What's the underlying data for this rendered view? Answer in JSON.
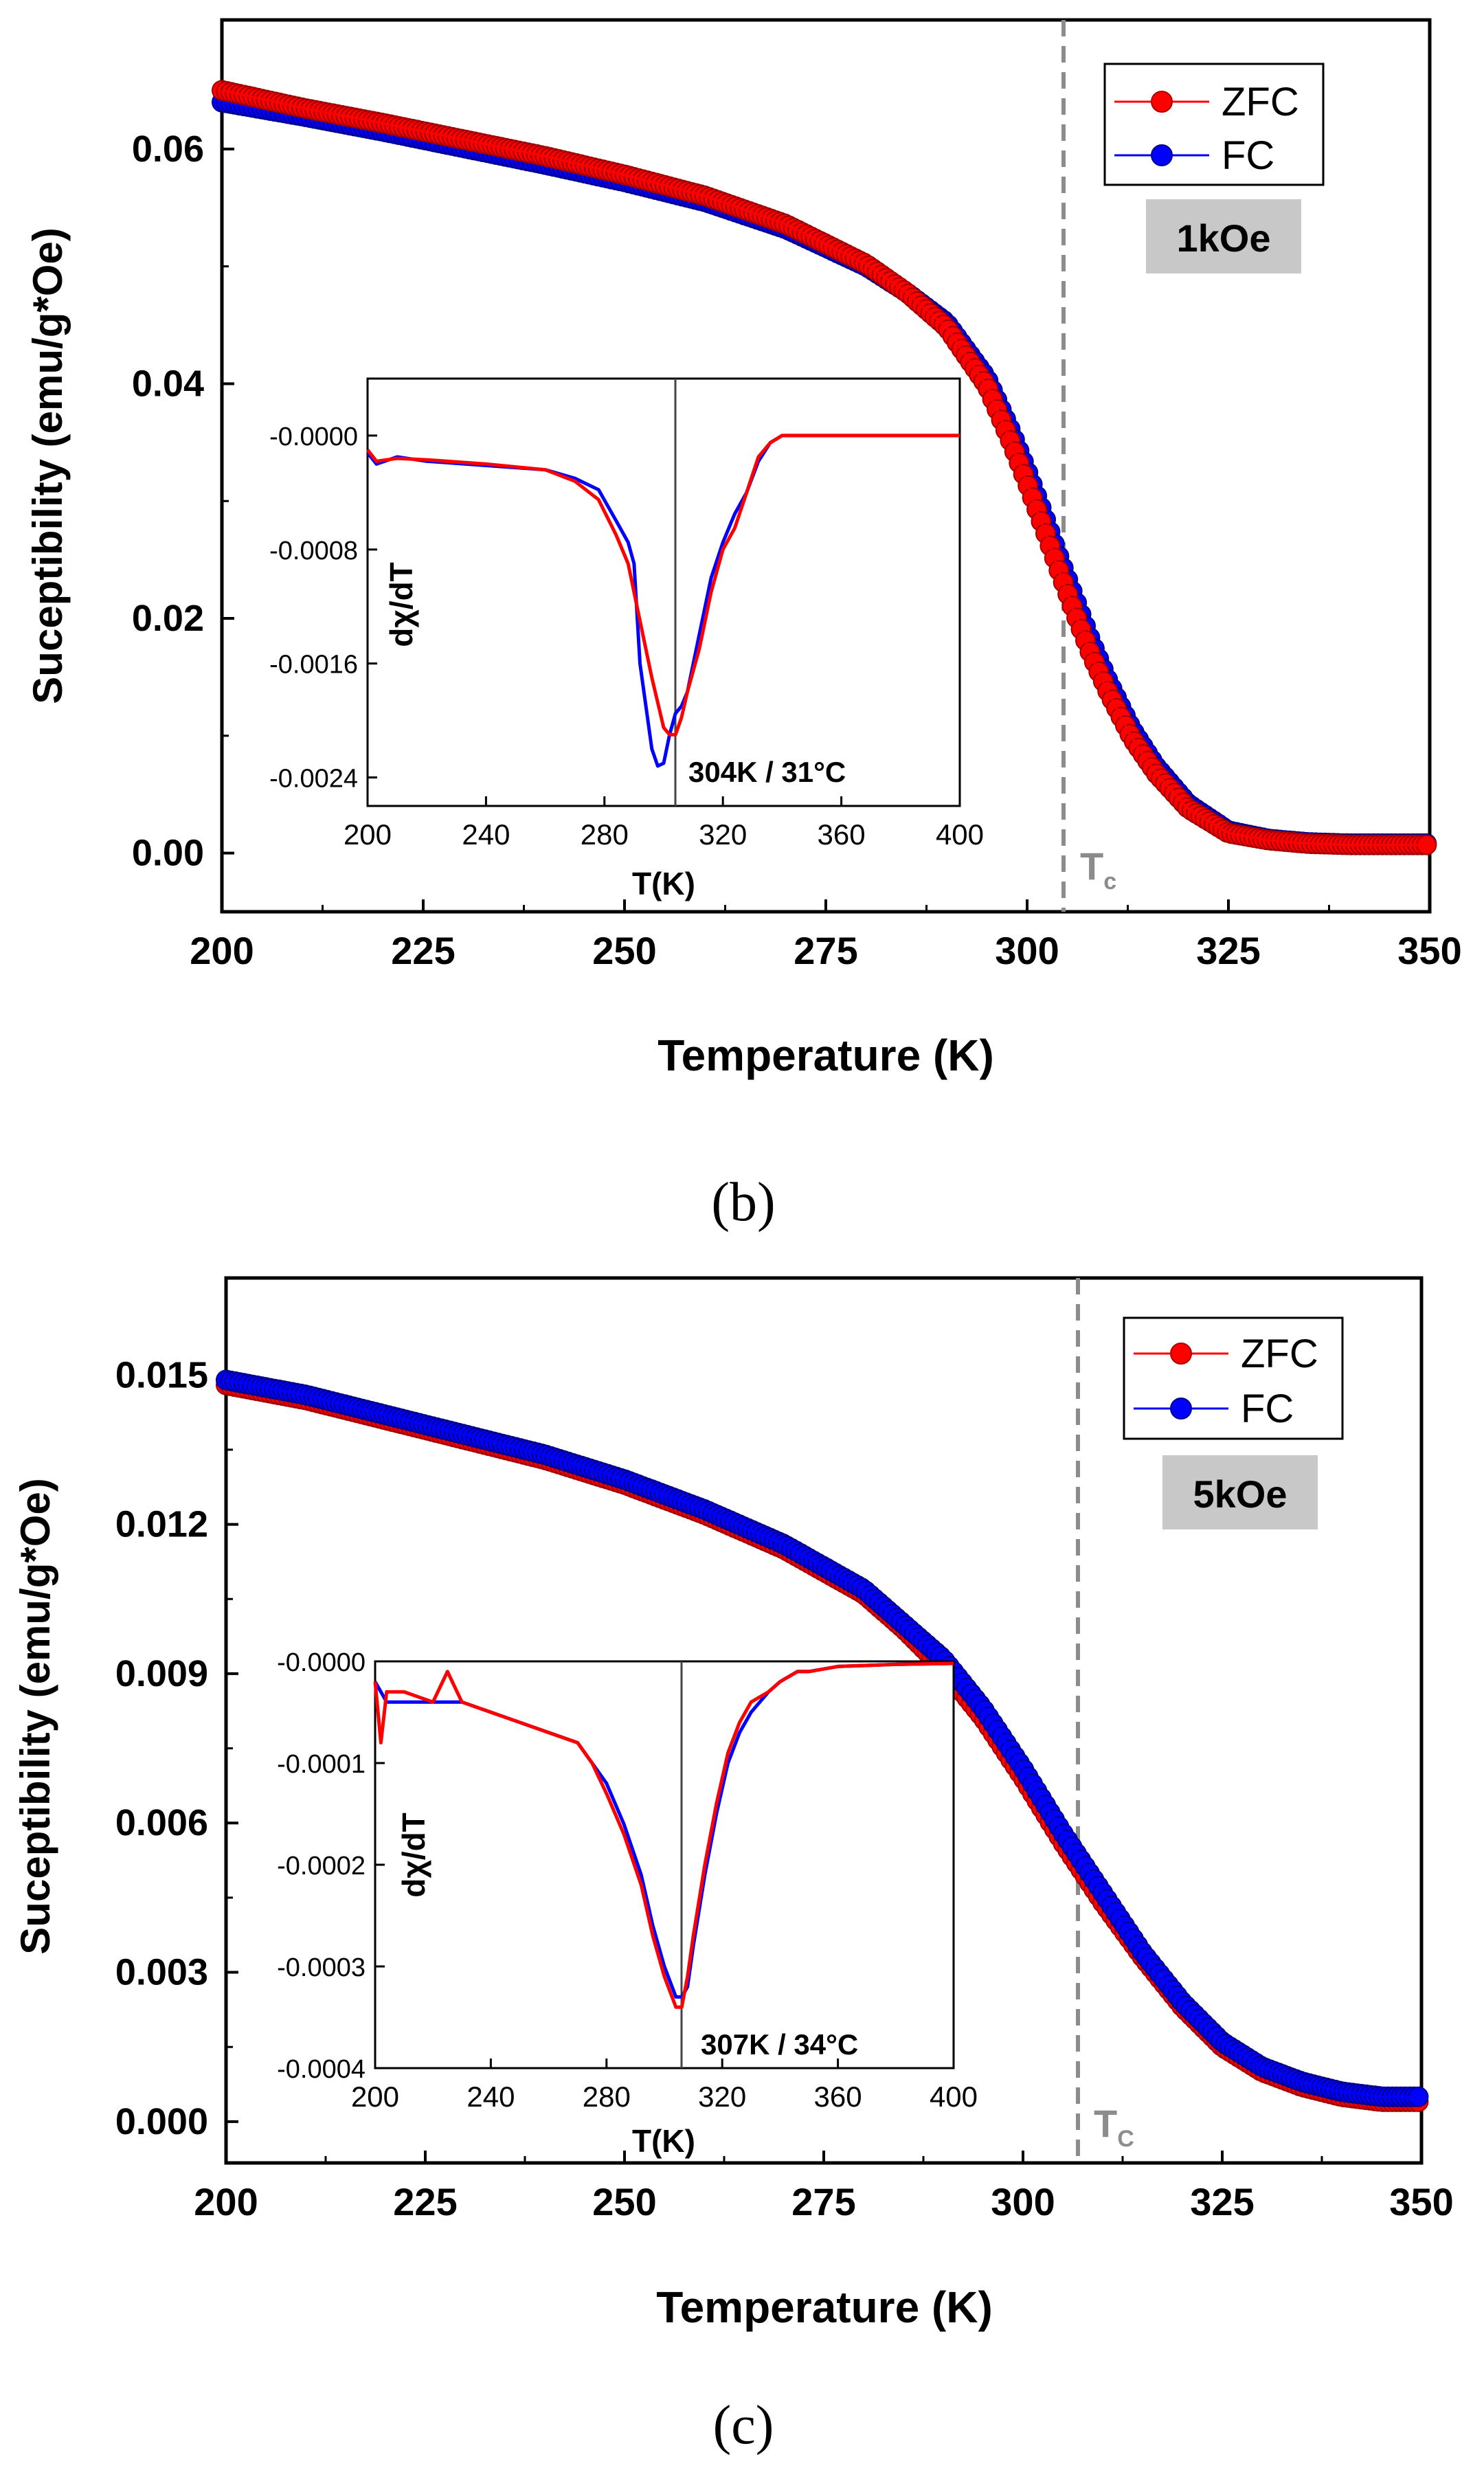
{
  "chart_data": [
    {
      "type": "scatter",
      "panel_label": "(b)",
      "xlabel": "Temperature (K)",
      "ylabel": "Suceptibility (emu/g*Oe)",
      "xlim": [
        200,
        350
      ],
      "ylim": [
        -0.005,
        0.071
      ],
      "xticks": [
        200,
        225,
        250,
        275,
        300,
        325,
        350
      ],
      "xtick_labels": [
        "200",
        "225",
        "250",
        "275",
        "300",
        "325",
        "350"
      ],
      "yticks": [
        0.0,
        0.02,
        0.04,
        0.06
      ],
      "ytick_labels": [
        "0.00",
        "0.02",
        "0.04",
        "0.06"
      ],
      "legend": [
        "ZFC",
        "FC"
      ],
      "legend_position": "top-right",
      "field_label": "1kOe",
      "tc_label": "T",
      "tc_subscript": "c",
      "tc_value": 304,
      "colors": {
        "ZFC": "#ff0000",
        "FC": "#0000ff",
        "tc_line": "#8c8c8c",
        "field_box": "#c8c8c8"
      },
      "series": [
        {
          "name": "ZFC",
          "x": [
            200,
            210,
            220,
            230,
            240,
            250,
            260,
            270,
            280,
            285,
            290,
            295,
            298,
            300,
            302,
            304,
            306,
            308,
            310,
            313,
            316,
            320,
            325,
            330,
            335,
            340,
            345,
            350
          ],
          "y": [
            0.065,
            0.0635,
            0.0622,
            0.0608,
            0.0594,
            0.0578,
            0.056,
            0.0536,
            0.0502,
            0.0478,
            0.0448,
            0.0398,
            0.035,
            0.0315,
            0.0278,
            0.024,
            0.0203,
            0.0168,
            0.0138,
            0.0098,
            0.0068,
            0.0038,
            0.0017,
            0.0011,
            0.0008,
            0.0007,
            0.0007,
            0.0007
          ]
        },
        {
          "name": "FC",
          "x": [
            200,
            210,
            220,
            230,
            240,
            250,
            260,
            270,
            280,
            285,
            290,
            295,
            298,
            300,
            302,
            304,
            306,
            308,
            310,
            313,
            316,
            320,
            325,
            330,
            335,
            340,
            345,
            350
          ],
          "y": [
            0.064,
            0.0628,
            0.0615,
            0.0601,
            0.0587,
            0.0572,
            0.0555,
            0.0532,
            0.05,
            0.0478,
            0.0452,
            0.0405,
            0.036,
            0.0326,
            0.029,
            0.0252,
            0.0216,
            0.018,
            0.0148,
            0.0106,
            0.0074,
            0.0042,
            0.0019,
            0.0012,
            0.0009,
            0.0008,
            0.0008,
            0.0008
          ]
        }
      ],
      "inset": {
        "xlabel": "T(K)",
        "ylabel": "dχ/dT",
        "xlim": [
          200,
          400
        ],
        "ylim": [
          -0.0026,
          0.0004
        ],
        "xticks": [
          200,
          240,
          280,
          320,
          360,
          400
        ],
        "xtick_labels": [
          "200",
          "240",
          "280",
          "320",
          "360",
          "400"
        ],
        "yticks": [
          0.0,
          -0.0008,
          -0.0016,
          -0.0024
        ],
        "ytick_labels": [
          "-0.0000",
          "-0.0008",
          "-0.0016",
          "-0.0024"
        ],
        "annotation": "304K / 31°C",
        "vline": 304,
        "series": [
          {
            "name": "ZFC",
            "x": [
              200,
              203,
              210,
              220,
              240,
              260,
              270,
              278,
              284,
              288,
              292,
              296,
              300,
              302,
              304,
              306,
              308,
              312,
              316,
              320,
              324,
              328,
              332,
              336,
              340,
              350,
              360,
              380,
              400
            ],
            "y": [
              -0.0001,
              -0.00018,
              -0.00016,
              -0.00017,
              -0.0002,
              -0.00024,
              -0.00032,
              -0.00045,
              -0.0007,
              -0.0009,
              -0.0013,
              -0.0017,
              -0.00205,
              -0.0021,
              -0.0021,
              -0.00198,
              -0.0018,
              -0.0015,
              -0.0011,
              -0.0008,
              -0.00065,
              -0.0004,
              -0.00015,
              -5e-05,
              0.0,
              0.0,
              0.0,
              0.0,
              0.0
            ]
          },
          {
            "name": "FC",
            "x": [
              200,
              203,
              210,
              220,
              240,
              260,
              270,
              278,
              284,
              288,
              290,
              292,
              296,
              298,
              300,
              302,
              304,
              306,
              308,
              312,
              316,
              320,
              324,
              328,
              332,
              336,
              340,
              350,
              360,
              380,
              400
            ],
            "y": [
              -0.00012,
              -0.0002,
              -0.00015,
              -0.00018,
              -0.00021,
              -0.00024,
              -0.0003,
              -0.00038,
              -0.0006,
              -0.00075,
              -0.0009,
              -0.0016,
              -0.0022,
              -0.00232,
              -0.0023,
              -0.0021,
              -0.00195,
              -0.0019,
              -0.0018,
              -0.0014,
              -0.001,
              -0.00075,
              -0.00055,
              -0.0004,
              -0.00018,
              -5e-05,
              0.0,
              0.0,
              0.0,
              0.0,
              0.0
            ]
          }
        ]
      }
    },
    {
      "type": "scatter",
      "panel_label": "(c)",
      "xlabel": "Temperature (K)",
      "ylabel": "Suceptibility (emu/g*Oe)",
      "xlim": [
        200,
        350
      ],
      "ylim": [
        -0.00083,
        0.01695
      ],
      "xticks": [
        200,
        225,
        250,
        275,
        300,
        325,
        350
      ],
      "xtick_labels": [
        "200",
        "225",
        "250",
        "275",
        "300",
        "325",
        "350"
      ],
      "yticks": [
        0.0,
        0.003,
        0.006,
        0.009,
        0.012,
        0.015
      ],
      "ytick_labels": [
        "0.000",
        "0.003",
        "0.006",
        "0.009",
        "0.012",
        "0.015"
      ],
      "legend": [
        "ZFC",
        "FC"
      ],
      "legend_position": "top-right",
      "field_label": "5kOe",
      "tc_label": "T",
      "tc_subscript": "C",
      "tc_value": 307,
      "colors": {
        "ZFC": "#ff0000",
        "FC": "#0000ff",
        "tc_line": "#8c8c8c",
        "field_box": "#c8c8c8"
      },
      "series": [
        {
          "name": "ZFC",
          "x": [
            200,
            210,
            220,
            230,
            240,
            250,
            260,
            270,
            280,
            285,
            290,
            295,
            300,
            305,
            310,
            315,
            320,
            325,
            330,
            335,
            340,
            345,
            350
          ],
          "y": [
            0.0148,
            0.0145,
            0.0141,
            0.0137,
            0.0133,
            0.0128,
            0.0122,
            0.0115,
            0.0106,
            0.0099,
            0.0091,
            0.0081,
            0.0069,
            0.0056,
            0.0044,
            0.0033,
            0.0023,
            0.0015,
            0.001,
            0.0007,
            0.0005,
            0.0004,
            0.0004
          ]
        },
        {
          "name": "FC",
          "x": [
            200,
            210,
            220,
            230,
            240,
            250,
            260,
            270,
            280,
            285,
            290,
            295,
            300,
            305,
            310,
            315,
            320,
            325,
            330,
            335,
            340,
            345,
            350
          ],
          "y": [
            0.0149,
            0.0146,
            0.0142,
            0.0138,
            0.0134,
            0.0129,
            0.0123,
            0.0116,
            0.0107,
            0.01,
            0.0093,
            0.0083,
            0.0071,
            0.0058,
            0.0046,
            0.0034,
            0.0024,
            0.0016,
            0.0011,
            0.0008,
            0.0006,
            0.0005,
            0.0005
          ]
        }
      ],
      "inset": {
        "xlabel": "T(K)",
        "ylabel": "dχ/dT",
        "xlim": [
          200,
          400
        ],
        "ylim": [
          -0.0004,
          0.0
        ],
        "xticks": [
          200,
          240,
          280,
          320,
          360,
          400
        ],
        "xtick_labels": [
          "200",
          "240",
          "280",
          "320",
          "360",
          "400"
        ],
        "yticks": [
          0.0,
          -0.0001,
          -0.0002,
          -0.0003,
          -0.0004
        ],
        "ytick_labels": [
          "-0.0000",
          "-0.0001",
          "-0.0002",
          "-0.0003",
          "-0.0004"
        ],
        "annotation": "307K / 34°C",
        "vline": 307,
        "series": [
          {
            "name": "ZFC",
            "x": [
              200,
              202,
              204,
              210,
              220,
              225,
              230,
              240,
              250,
              260,
              270,
              275,
              280,
              286,
              292,
              296,
              300,
              304,
              306,
              308,
              310,
              314,
              318,
              322,
              326,
              330,
              336,
              340,
              346,
              350,
              360,
              380,
              400
            ],
            "y": [
              -2e-05,
              -8e-05,
              -3e-05,
              -3e-05,
              -4e-05,
              -1e-05,
              -4e-05,
              -5e-05,
              -6e-05,
              -7e-05,
              -8e-05,
              -0.0001,
              -0.00013,
              -0.00017,
              -0.00022,
              -0.00027,
              -0.00031,
              -0.00034,
              -0.00034,
              -0.00031,
              -0.00027,
              -0.0002,
              -0.00014,
              -9e-05,
              -6e-05,
              -4e-05,
              -3e-05,
              -2e-05,
              -1e-05,
              -1e-05,
              -5e-06,
              -3e-06,
              -2e-06
            ]
          },
          {
            "name": "FC",
            "x": [
              200,
              202,
              204,
              210,
              220,
              225,
              230,
              240,
              250,
              260,
              270,
              275,
              280,
              286,
              292,
              296,
              300,
              304,
              306,
              308,
              310,
              314,
              318,
              322,
              326,
              330,
              336,
              340,
              346,
              350,
              360,
              380,
              400
            ],
            "y": [
              -2e-05,
              -3e-05,
              -4e-05,
              -4e-05,
              -4e-05,
              -4e-05,
              -4e-05,
              -5e-05,
              -6e-05,
              -7e-05,
              -8e-05,
              -0.0001,
              -0.00012,
              -0.00016,
              -0.00021,
              -0.00026,
              -0.0003,
              -0.00033,
              -0.00033,
              -0.00032,
              -0.00028,
              -0.00021,
              -0.00015,
              -0.0001,
              -7e-05,
              -5e-05,
              -3e-05,
              -2e-05,
              -1e-05,
              -1e-05,
              -5e-06,
              -3e-06,
              -2e-06
            ]
          }
        ]
      }
    }
  ]
}
